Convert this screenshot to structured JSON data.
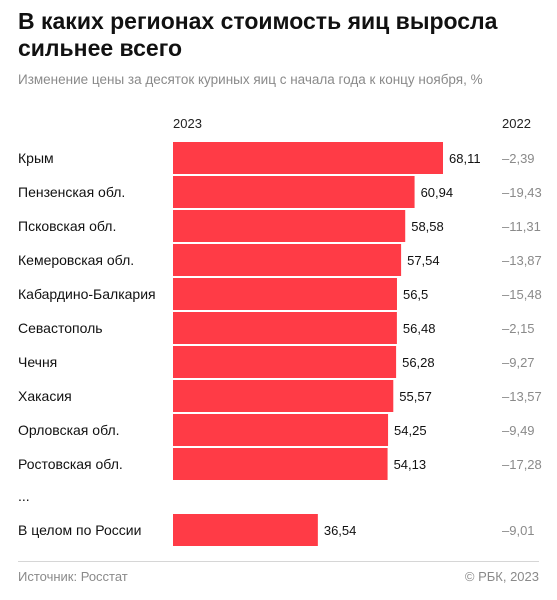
{
  "header": {
    "title": "В каких регионах стоимость яиц выросла сильнее всего",
    "subtitle": "Изменение цены за десяток куриных яиц с начала года к концу ноября, %"
  },
  "columns": {
    "current": "2023",
    "previous": "2022"
  },
  "ellipsis": "...",
  "footer": {
    "source": "Источник: Росстат",
    "copyright": "© РБК, 2023"
  },
  "colors": {
    "bar": "#ff3b46",
    "text": "#111111",
    "muted": "#8a8a8a"
  },
  "chart_data": {
    "type": "bar",
    "orientation": "horizontal",
    "categories": [
      "Крым",
      "Пензенская обл.",
      "Псковская обл.",
      "Кемеровская обл.",
      "Кабардино-Балкария",
      "Севастополь",
      "Чечня",
      "Хакасия",
      "Орловская обл.",
      "Ростовская обл."
    ],
    "series": [
      {
        "name": "2023",
        "values": [
          68.11,
          60.94,
          58.58,
          57.54,
          56.5,
          56.48,
          56.28,
          55.57,
          54.25,
          54.13
        ],
        "labels": [
          "68,11",
          "60,94",
          "58,58",
          "57,54",
          "56,5",
          "56,48",
          "56,28",
          "55,57",
          "54,25",
          "54,13"
        ]
      },
      {
        "name": "2022",
        "values": [
          -2.39,
          -19.43,
          -11.31,
          -13.87,
          -15.48,
          -2.15,
          -9.27,
          -13.57,
          -9.49,
          -17.28
        ],
        "labels": [
          "–2,39",
          "–19,43",
          "–11,31",
          "–13,87",
          "–15,48",
          "–2,15",
          "–9,27",
          "–13,57",
          "–9,49",
          "–17,28"
        ]
      }
    ],
    "total": {
      "category": "В целом по России",
      "value_2023": 36.54,
      "label_2023": "36,54",
      "value_2022": -9.01,
      "label_2022": "–9,01"
    },
    "xlim": [
      0,
      68.11
    ]
  }
}
